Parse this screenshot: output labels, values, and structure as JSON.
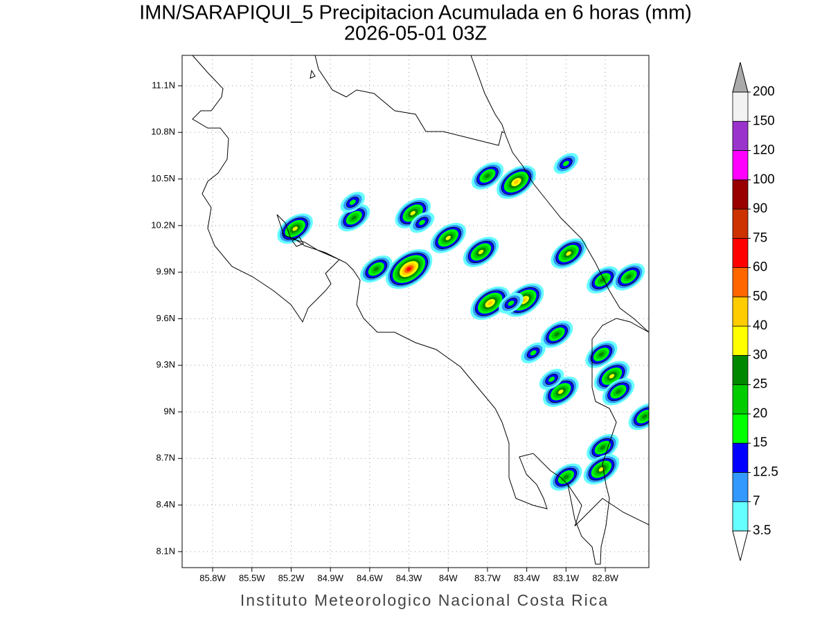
{
  "chart_data": {
    "type": "map",
    "title": "IMN/SARAPIQUI_5 Precipitacion Acumulada en 6 horas (mm)",
    "subtitle": "2026-05-01 03Z",
    "footer": "Instituto Meteorologico Nacional Costa Rica",
    "xlim": [
      -86.033,
      -82.467
    ],
    "ylim": [
      7.997,
      11.296
    ],
    "xticks": [
      {
        "value": -85.8,
        "label": "85.8W"
      },
      {
        "value": -85.5,
        "label": "85.5W"
      },
      {
        "value": -85.2,
        "label": "85.2W"
      },
      {
        "value": -84.9,
        "label": "84.9W"
      },
      {
        "value": -84.6,
        "label": "84.6W"
      },
      {
        "value": -84.3,
        "label": "84.3W"
      },
      {
        "value": -84.0,
        "label": "84W"
      },
      {
        "value": -83.7,
        "label": "83.7W"
      },
      {
        "value": -83.4,
        "label": "83.4W"
      },
      {
        "value": -83.1,
        "label": "83.1W"
      },
      {
        "value": -82.8,
        "label": "82.8W"
      }
    ],
    "yticks": [
      {
        "value": 11.1,
        "label": "11.1N"
      },
      {
        "value": 10.8,
        "label": "10.8N"
      },
      {
        "value": 10.5,
        "label": "10.5N"
      },
      {
        "value": 10.2,
        "label": "10.2N"
      },
      {
        "value": 9.9,
        "label": "9.9N"
      },
      {
        "value": 9.6,
        "label": "9.6N"
      },
      {
        "value": 9.3,
        "label": "9.3N"
      },
      {
        "value": 9.0,
        "label": "9N"
      },
      {
        "value": 8.7,
        "label": "8.7N"
      },
      {
        "value": 8.4,
        "label": "8.4N"
      },
      {
        "value": 8.1,
        "label": "8.1N"
      }
    ],
    "grid": true,
    "colorbar": {
      "levels": [
        3.5,
        7,
        12.5,
        15,
        20,
        25,
        30,
        40,
        50,
        60,
        75,
        90,
        100,
        120,
        150,
        200
      ],
      "colors": [
        "#66ffff",
        "#3399ff",
        "#0000ff",
        "#00ff00",
        "#00cc00",
        "#008800",
        "#ffff00",
        "#ffcc00",
        "#ff6600",
        "#ff0000",
        "#cc3300",
        "#990000",
        "#ff00ff",
        "#9933cc",
        "#f2f2f2"
      ],
      "under_color": "#ffffff",
      "over_color": "#aaaaaa"
    },
    "cells": [
      {
        "lon": -85.17,
        "lat": 10.18,
        "value": 30
      },
      {
        "lon": -84.72,
        "lat": 10.25,
        "value": 25
      },
      {
        "lon": -84.73,
        "lat": 10.35,
        "value": 15
      },
      {
        "lon": -84.27,
        "lat": 10.28,
        "value": 30
      },
      {
        "lon": -84.2,
        "lat": 10.22,
        "value": 15
      },
      {
        "lon": -84.0,
        "lat": 10.12,
        "value": 30
      },
      {
        "lon": -83.75,
        "lat": 10.03,
        "value": 30
      },
      {
        "lon": -83.7,
        "lat": 10.52,
        "value": 25
      },
      {
        "lon": -83.48,
        "lat": 10.48,
        "value": 40
      },
      {
        "lon": -83.1,
        "lat": 10.6,
        "value": 15
      },
      {
        "lon": -84.55,
        "lat": 9.92,
        "value": 25
      },
      {
        "lon": -84.3,
        "lat": 9.92,
        "value": 60
      },
      {
        "lon": -83.68,
        "lat": 9.7,
        "value": 40
      },
      {
        "lon": -83.42,
        "lat": 9.72,
        "value": 40
      },
      {
        "lon": -83.52,
        "lat": 9.7,
        "value": 15
      },
      {
        "lon": -83.08,
        "lat": 10.02,
        "value": 30
      },
      {
        "lon": -82.82,
        "lat": 9.85,
        "value": 25
      },
      {
        "lon": -82.62,
        "lat": 9.87,
        "value": 25
      },
      {
        "lon": -83.17,
        "lat": 9.5,
        "value": 25
      },
      {
        "lon": -83.14,
        "lat": 9.13,
        "value": 30
      },
      {
        "lon": -83.21,
        "lat": 9.21,
        "value": 15
      },
      {
        "lon": -82.83,
        "lat": 9.37,
        "value": 25
      },
      {
        "lon": -82.75,
        "lat": 9.23,
        "value": 30
      },
      {
        "lon": -82.7,
        "lat": 9.13,
        "value": 25
      },
      {
        "lon": -82.5,
        "lat": 8.97,
        "value": 25
      },
      {
        "lon": -82.82,
        "lat": 8.77,
        "value": 25
      },
      {
        "lon": -82.83,
        "lat": 8.63,
        "value": 30
      },
      {
        "lon": -83.1,
        "lat": 8.58,
        "value": 25
      },
      {
        "lon": -83.35,
        "lat": 9.38,
        "value": 15
      }
    ]
  }
}
